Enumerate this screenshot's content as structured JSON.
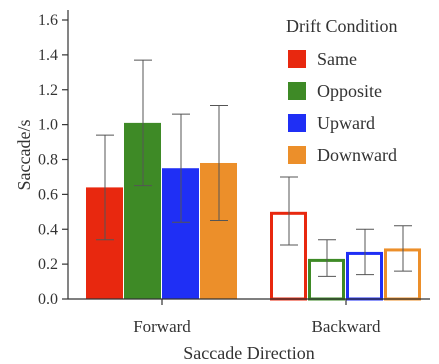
{
  "chart_data": {
    "type": "bar",
    "title": "",
    "xlabel": "Saccade Direction",
    "ylabel": "Saccade/s",
    "ylim": [
      0,
      1.6
    ],
    "yticks": [
      0.0,
      0.2,
      0.4,
      0.6,
      0.8,
      1.0,
      1.2,
      1.4,
      1.6
    ],
    "ytick_labels": [
      "0.0",
      "0.2",
      "0.4",
      "0.6",
      "0.8",
      "1.0",
      "1.2",
      "1.4",
      "1.6"
    ],
    "categories": [
      "Forward",
      "Backward"
    ],
    "legend": {
      "title": "Drift Condition",
      "placement": "top-right"
    },
    "grid": false,
    "series": [
      {
        "name": "Same",
        "color": "#e8280f",
        "values": [
          0.64,
          0.5
        ],
        "err_low": [
          0.34,
          0.31
        ],
        "err_high": [
          0.94,
          0.7
        ]
      },
      {
        "name": "Opposite",
        "color": "#3e8a26",
        "values": [
          1.01,
          0.23
        ],
        "err_low": [
          0.65,
          0.13
        ],
        "err_high": [
          1.37,
          0.34
        ]
      },
      {
        "name": "Upward",
        "color": "#1f2ff5",
        "values": [
          0.75,
          0.27
        ],
        "err_low": [
          0.44,
          0.14
        ],
        "err_high": [
          1.06,
          0.4
        ]
      },
      {
        "name": "Downward",
        "color": "#ec8f2a",
        "values": [
          0.78,
          0.29
        ],
        "err_low": [
          0.45,
          0.16
        ],
        "err_high": [
          1.11,
          0.42
        ]
      }
    ],
    "bar_style": [
      "filled",
      "outline"
    ]
  }
}
